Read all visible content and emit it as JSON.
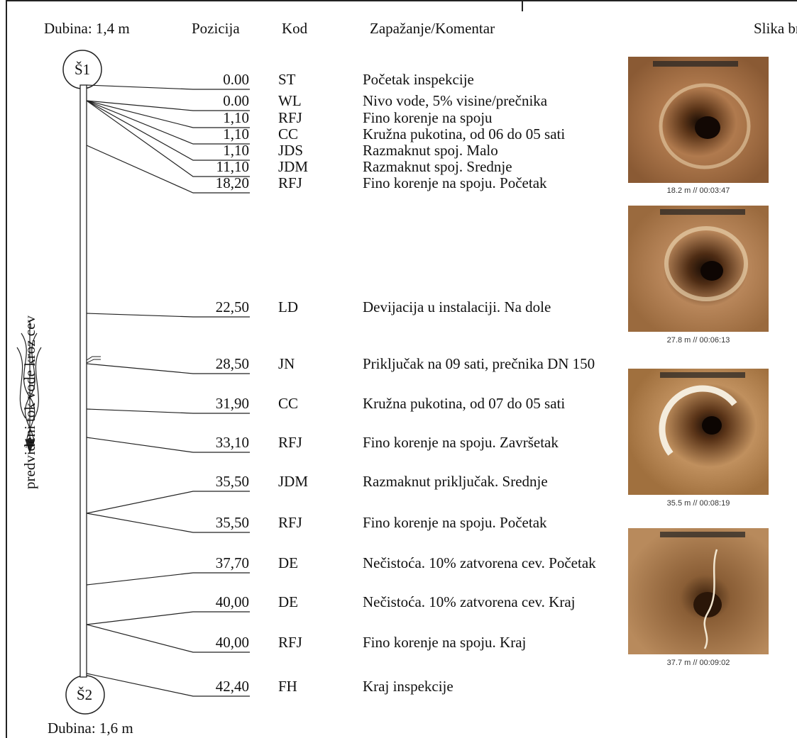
{
  "header": {
    "depth_top": "Dubina: 1,4 m",
    "position": "Pozicija",
    "code": "Kod",
    "comment": "Zapažanje/Komentar",
    "image_no": "Slika br."
  },
  "manholes": {
    "start": "Š1",
    "end": "Š2"
  },
  "depth_bottom": "Dubina: 1,6 m",
  "flow_label": "predviđeni tok vode kroz cev",
  "observations": [
    {
      "position": "0.00",
      "code": "ST",
      "comment": "Početak inspekcije"
    },
    {
      "position": "0.00",
      "code": "WL",
      "comment": "Nivo vode, 5% visine/prečnika"
    },
    {
      "position": "1,10",
      "code": "RFJ",
      "comment": "Fino korenje na spoju"
    },
    {
      "position": "1,10",
      "code": "CC",
      "comment": "Kružna pukotina, od 06 do 05 sati"
    },
    {
      "position": "1,10",
      "code": "JDS",
      "comment": "Razmaknut spoj. Malo"
    },
    {
      "position": "11,10",
      "code": "JDM",
      "comment": "Razmaknut spoj. Srednje"
    },
    {
      "position": "18,20",
      "code": "RFJ",
      "comment": "Fino korenje na spoju. Početak"
    },
    {
      "position": "22,50",
      "code": "LD",
      "comment": "Devijacija u instalaciji. Na dole"
    },
    {
      "position": "28,50",
      "code": "JN",
      "comment": "Priključak na 09 sati, prečnika DN 150"
    },
    {
      "position": "31,90",
      "code": "CC",
      "comment": "Kružna pukotina, od 07 do 05 sati"
    },
    {
      "position": "33,10",
      "code": "RFJ",
      "comment": "Fino korenje na spoju. Završetak"
    },
    {
      "position": "35,50",
      "code": "JDM",
      "comment": "Razmaknut priključak. Srednje"
    },
    {
      "position": "35,50",
      "code": "RFJ",
      "comment": "Fino korenje na spoju. Početak"
    },
    {
      "position": "37,70",
      "code": "DE",
      "comment": "Nečistoća. 10% zatvorena cev. Početak"
    },
    {
      "position": "40,00",
      "code": "DE",
      "comment": "Nečistoća. 10% zatvorena cev. Kraj"
    },
    {
      "position": "40,00",
      "code": "RFJ",
      "comment": "Fino korenje na spoju. Kraj"
    },
    {
      "position": "42,40",
      "code": "FH",
      "comment": "Kraj inspekcije"
    }
  ],
  "photos": [
    {
      "caption": "18.2 m // 00:03:47"
    },
    {
      "caption": "27.8 m // 00:06:13"
    },
    {
      "caption": "35.5 m // 00:08:19"
    },
    {
      "caption": "37.7 m // 00:09:02"
    }
  ]
}
